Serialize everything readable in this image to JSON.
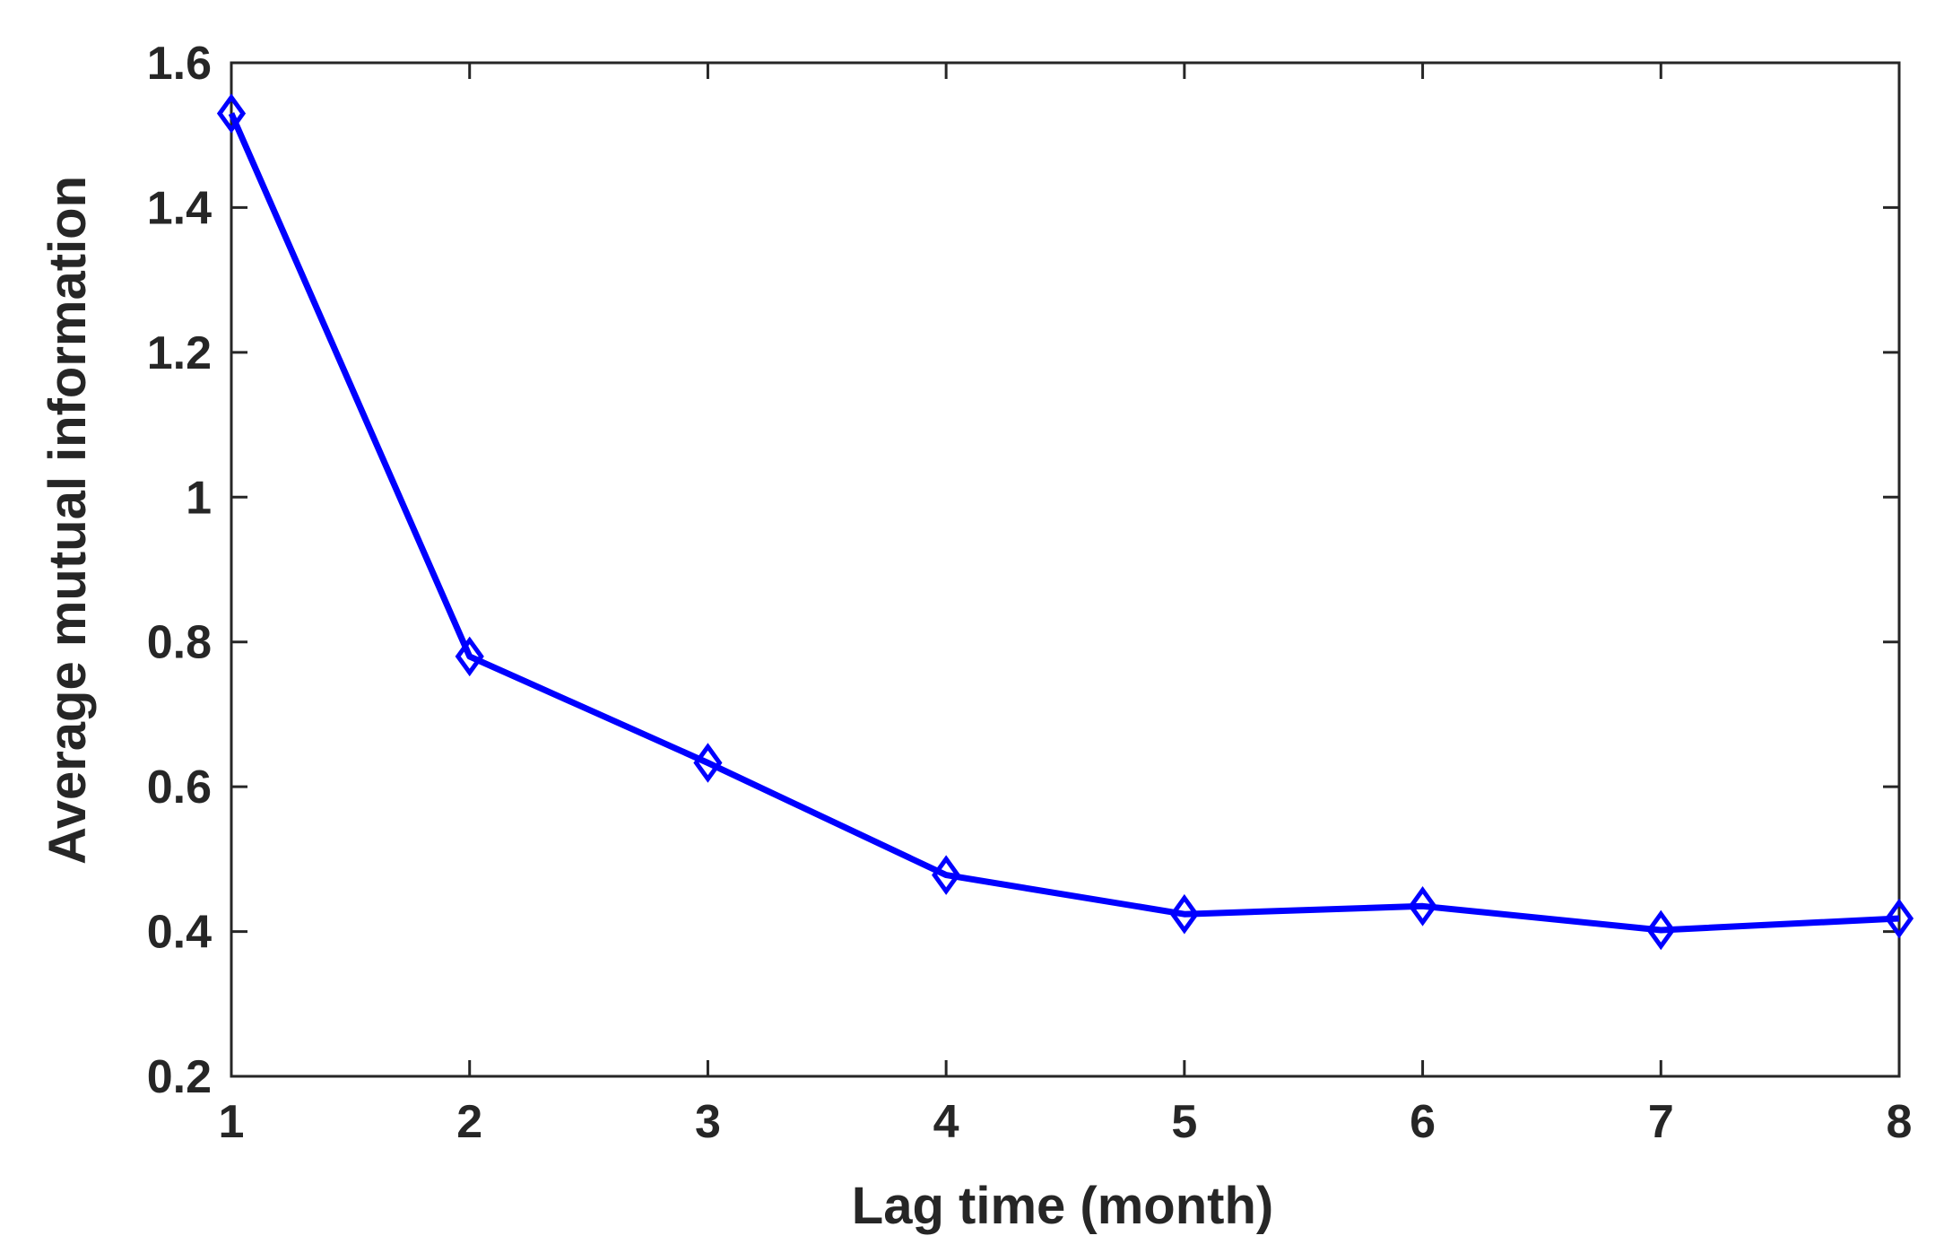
{
  "chart_data": {
    "type": "line",
    "title": "",
    "xlabel": "Lag time (month)",
    "ylabel": "Average mutual information",
    "xlim": [
      1,
      8
    ],
    "ylim": [
      0.2,
      1.6
    ],
    "xticks": [
      "1",
      "2",
      "3",
      "4",
      "5",
      "6",
      "7",
      "8"
    ],
    "yticks": [
      "0.2",
      "0.4",
      "0.6",
      "0.8",
      "1",
      "1.2",
      "1.4",
      "1.6"
    ],
    "grid": false,
    "legend": "none",
    "series": [
      {
        "color": "#0000FF",
        "marker": "diamond",
        "x": [
          1,
          2,
          3,
          4,
          5,
          6,
          7,
          8
        ],
        "y": [
          1.53,
          0.78,
          0.633,
          0.478,
          0.424,
          0.435,
          0.402,
          0.418
        ]
      }
    ]
  }
}
